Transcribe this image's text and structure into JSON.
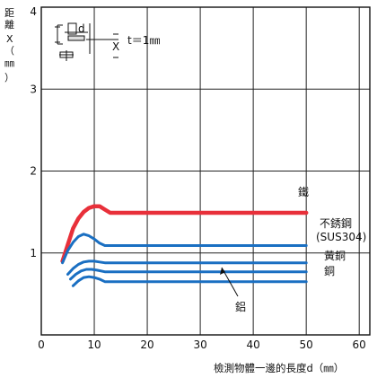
{
  "chart_data": {
    "type": "line",
    "xlabel": "檢測物體一邊的長度d（㎜）",
    "ylabel": [
      "距",
      "離",
      "X",
      "（",
      "㎜",
      "）"
    ],
    "xlim": [
      0,
      62
    ],
    "ylim": [
      0,
      4
    ],
    "x_ticks": [
      "0",
      "10",
      "20",
      "30",
      "40",
      "50",
      "60"
    ],
    "y_ticks": [
      "1",
      "2",
      "3",
      "4"
    ],
    "grid": true,
    "inset": {
      "t_label": "t＝1㎜",
      "d_label": "d",
      "x_label": "X"
    },
    "series": [
      {
        "name": "鐵",
        "color": "#e8303a",
        "points": [
          [
            4,
            0.9
          ],
          [
            5,
            1.1
          ],
          [
            6,
            1.3
          ],
          [
            7,
            1.42
          ],
          [
            8,
            1.5
          ],
          [
            9,
            1.55
          ],
          [
            10,
            1.57
          ],
          [
            11,
            1.57
          ],
          [
            12,
            1.53
          ],
          [
            13,
            1.49
          ],
          [
            50,
            1.49
          ]
        ]
      },
      {
        "name": "不銹鋼",
        "sublabel": "(SUS304)",
        "color": "#1a6fc2",
        "points": [
          [
            4,
            0.88
          ],
          [
            5,
            1.03
          ],
          [
            6,
            1.13
          ],
          [
            7,
            1.2
          ],
          [
            8,
            1.23
          ],
          [
            9,
            1.21
          ],
          [
            10,
            1.17
          ],
          [
            11,
            1.12
          ],
          [
            12,
            1.09
          ],
          [
            50,
            1.09
          ]
        ]
      },
      {
        "name": "黃銅",
        "color": "#1a6fc2",
        "points": [
          [
            5,
            0.74
          ],
          [
            6,
            0.81
          ],
          [
            7,
            0.86
          ],
          [
            8,
            0.89
          ],
          [
            9,
            0.9
          ],
          [
            10,
            0.9
          ],
          [
            11,
            0.89
          ],
          [
            12,
            0.88
          ],
          [
            50,
            0.88
          ]
        ]
      },
      {
        "name": "銅",
        "color": "#1a6fc2",
        "points": [
          [
            5.5,
            0.68
          ],
          [
            6.5,
            0.74
          ],
          [
            7.5,
            0.78
          ],
          [
            8.5,
            0.8
          ],
          [
            9.5,
            0.8
          ],
          [
            10.5,
            0.79
          ],
          [
            12,
            0.77
          ],
          [
            50,
            0.77
          ]
        ]
      },
      {
        "name": "鋁",
        "color": "#1a6fc2",
        "points": [
          [
            6,
            0.6
          ],
          [
            7,
            0.66
          ],
          [
            8,
            0.7
          ],
          [
            9,
            0.71
          ],
          [
            10,
            0.7
          ],
          [
            11,
            0.68
          ],
          [
            12,
            0.65
          ],
          [
            50,
            0.65
          ]
        ]
      }
    ]
  }
}
